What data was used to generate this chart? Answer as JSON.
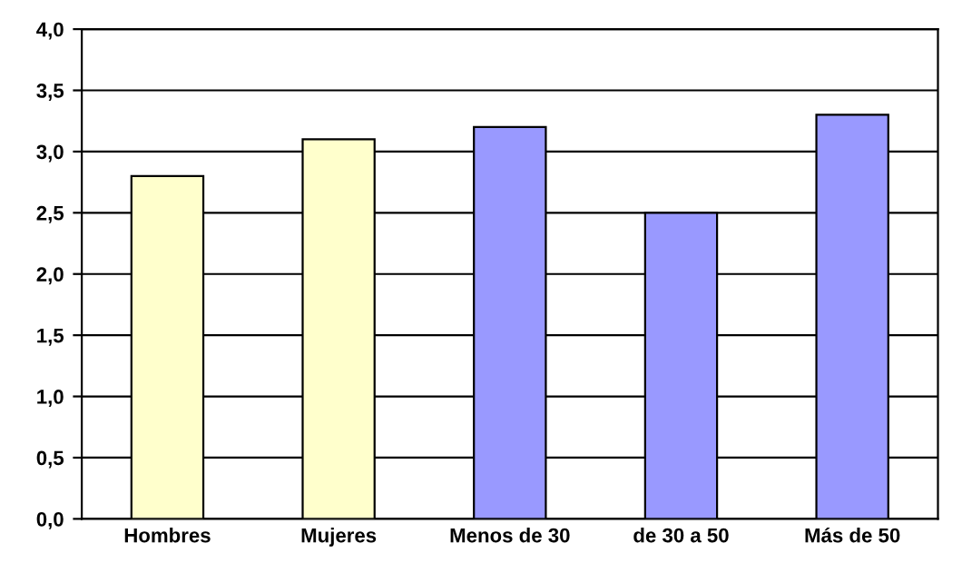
{
  "chart_data": {
    "type": "bar",
    "categories": [
      "Hombres",
      "Mujeres",
      "Menos de 30",
      "de 30 a 50",
      "Más de 50"
    ],
    "values": [
      2.8,
      3.1,
      3.2,
      2.5,
      3.3
    ],
    "colors": [
      "#ffffcc",
      "#ffffcc",
      "#9999ff",
      "#9999ff",
      "#9999ff"
    ],
    "ylim": [
      0,
      4
    ],
    "yticks": [
      {
        "value": 0,
        "label": "0,0"
      },
      {
        "value": 0.5,
        "label": "0,5"
      },
      {
        "value": 1,
        "label": "1,0"
      },
      {
        "value": 1.5,
        "label": "1,5"
      },
      {
        "value": 2,
        "label": "2,0"
      },
      {
        "value": 2.5,
        "label": "2,5"
      },
      {
        "value": 3,
        "label": "3,0"
      },
      {
        "value": 3.5,
        "label": "3,5"
      },
      {
        "value": 4,
        "label": "4,0"
      }
    ],
    "grid": "y"
  }
}
